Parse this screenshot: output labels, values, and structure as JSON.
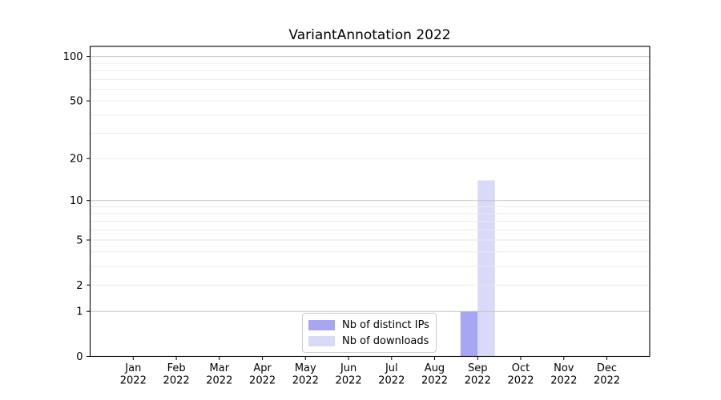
{
  "chart_data": {
    "type": "bar",
    "title": "VariantAnnotation 2022",
    "categories": [
      "Jan",
      "Feb",
      "Mar",
      "Apr",
      "May",
      "Jun",
      "Jul",
      "Aug",
      "Sep",
      "Oct",
      "Nov",
      "Dec"
    ],
    "year": "2022",
    "series": [
      {
        "name": "Nb of distinct IPs",
        "color": "#a6a6f2",
        "values": [
          0,
          0,
          0,
          0,
          0,
          0,
          0,
          0,
          1,
          0,
          0,
          0
        ]
      },
      {
        "name": "Nb of downloads",
        "color": "#d9d9f8",
        "values": [
          0,
          0,
          0,
          0,
          0,
          0,
          0,
          0,
          14,
          0,
          0,
          0
        ]
      }
    ],
    "xlabel": "",
    "ylabel": "",
    "yscale": "log1p",
    "ylim": [
      0,
      117
    ],
    "yticks": [
      0,
      1,
      2,
      5,
      10,
      20,
      50,
      100
    ],
    "grid": "horizontal",
    "grid_major_values": [
      1,
      10,
      100
    ],
    "grid_minor_values": [
      2,
      3,
      4,
      5,
      6,
      7,
      8,
      9,
      20,
      30,
      40,
      50,
      60,
      70,
      80,
      90
    ],
    "legend_position": "lower center inside",
    "colors": {
      "axis": "#000000",
      "text": "#000000",
      "major_grid": "#c6c6c6",
      "minor_grid": "#eaeaea",
      "background": "#ffffff"
    }
  }
}
